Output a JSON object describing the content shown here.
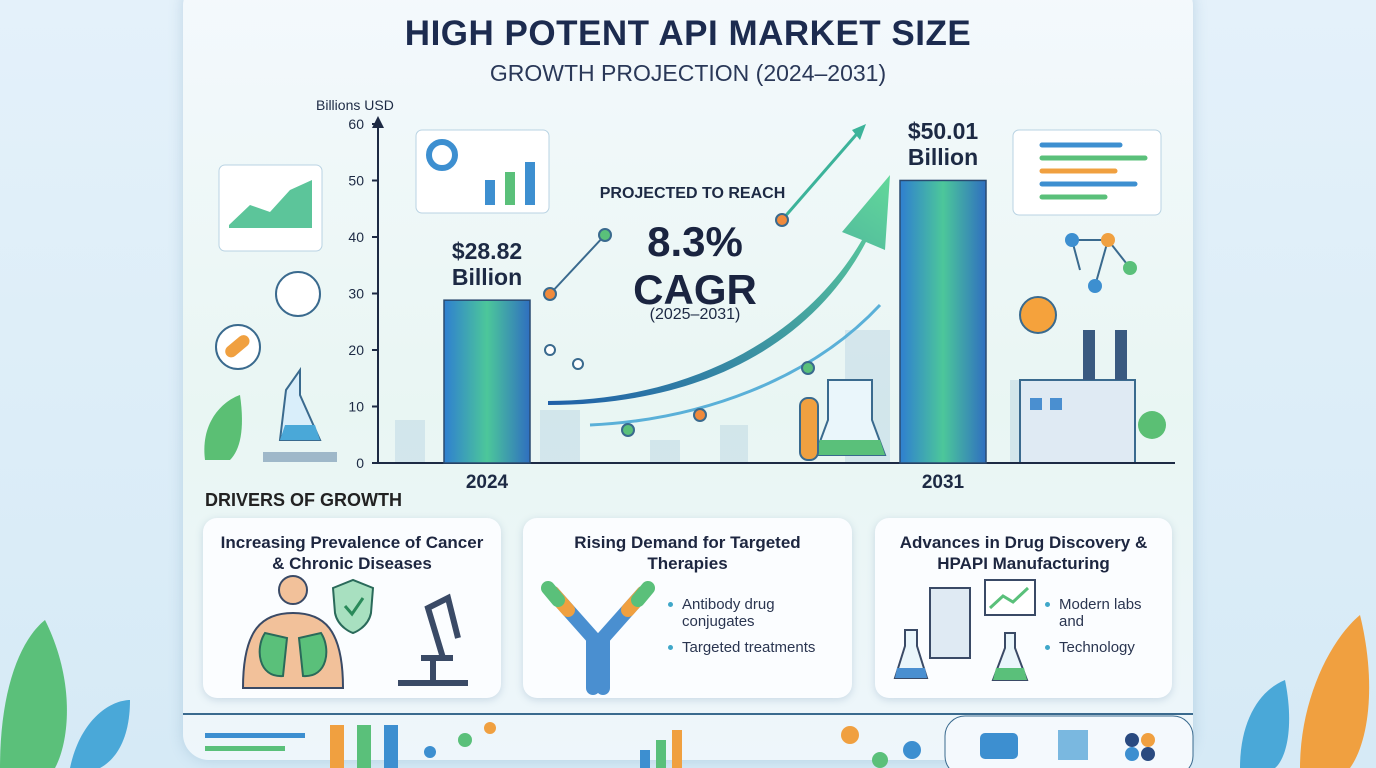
{
  "chart_data": {
    "type": "bar",
    "title": "HIGH POTENT API MARKET SIZE",
    "subtitle": "GROWTH PROJECTION (2024–2031)",
    "y_label": "Billions USD",
    "categories": [
      "2024",
      "2031"
    ],
    "values": [
      28.82,
      50.01
    ],
    "value_labels": [
      "$28.82 Billion",
      "$50.01 Billion"
    ],
    "color": "#4cc79a",
    "ylim": [
      0,
      60
    ],
    "yticks": [
      0,
      10,
      20,
      30,
      40,
      50,
      60
    ],
    "grid": false,
    "annotations": {
      "lead": "PROJECTED TO REACH",
      "cagr": "8.3% CAGR",
      "period": "(2025–2031)"
    }
  },
  "drivers": {
    "title": "DRIVERS OF GROWTH",
    "cards": [
      {
        "title": "Increasing Prevalence of Cancer & Chronic Diseases",
        "bullets": []
      },
      {
        "title": "Rising Demand for Targeted Therapies",
        "bullets": [
          "Antibody drug conjugates",
          "Targeted treatments"
        ]
      },
      {
        "title": "Advances in Drug Discovery & HPAPI Manufacturing",
        "bullets": [
          "Modern labs and",
          "Technology"
        ]
      }
    ]
  }
}
